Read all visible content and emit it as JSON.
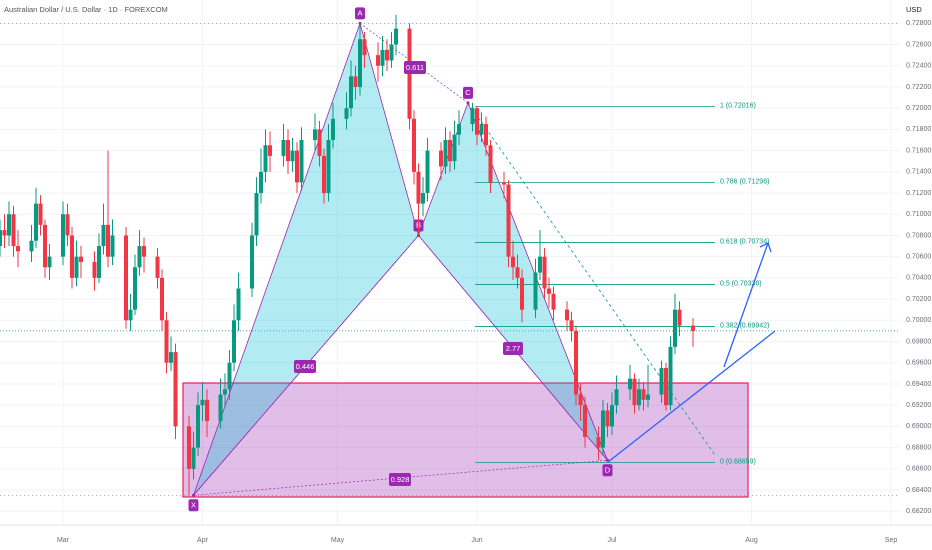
{
  "chart_data": {
    "type": "candlestick",
    "title": "Australian Dollar / U.S. Dollar · 1D · FOREXCOM",
    "y_label": "USD",
    "up_color": "#089981",
    "down_color": "#f23645",
    "grid": true,
    "xlim": [
      46,
      246
    ],
    "xticks": [
      {
        "value": 60,
        "label": "Mar"
      },
      {
        "value": 91,
        "label": "Apr"
      },
      {
        "value": 121,
        "label": "May"
      },
      {
        "value": 152,
        "label": "Jun"
      },
      {
        "value": 182,
        "label": "Jul"
      },
      {
        "value": 213,
        "label": "Aug"
      },
      {
        "value": 244,
        "label": "Sep"
      }
    ],
    "ylim": [
      0.6807,
      0.7302
    ],
    "yticks": [
      {
        "value": 0.682,
        "label": "0.68200"
      },
      {
        "value": 0.684,
        "label": "0.68400"
      },
      {
        "value": 0.686,
        "label": "0.68600"
      },
      {
        "value": 0.688,
        "label": "0.68800"
      },
      {
        "value": 0.69,
        "label": "0.69000"
      },
      {
        "value": 0.692,
        "label": "0.69200"
      },
      {
        "value": 0.694,
        "label": "0.69400"
      },
      {
        "value": 0.696,
        "label": "0.69600"
      },
      {
        "value": 0.698,
        "label": "0.69800"
      },
      {
        "value": 0.7,
        "label": "0.70000"
      },
      {
        "value": 0.702,
        "label": "0.70200"
      },
      {
        "value": 0.704,
        "label": "0.70400"
      },
      {
        "value": 0.706,
        "label": "0.70600"
      },
      {
        "value": 0.708,
        "label": "0.70800"
      },
      {
        "value": 0.71,
        "label": "0.71000"
      },
      {
        "value": 0.712,
        "label": "0.71200"
      },
      {
        "value": 0.714,
        "label": "0.71400"
      },
      {
        "value": 0.716,
        "label": "0.71600"
      },
      {
        "value": 0.718,
        "label": "0.71800"
      },
      {
        "value": 0.72,
        "label": "0.72000"
      },
      {
        "value": 0.722,
        "label": "0.72200"
      },
      {
        "value": 0.724,
        "label": "0.72400"
      },
      {
        "value": 0.726,
        "label": "0.72600"
      },
      {
        "value": 0.728,
        "label": "0.72800"
      }
    ],
    "x": [
      46,
      47,
      48,
      49,
      50,
      53,
      54,
      55,
      56,
      57,
      60,
      61,
      62,
      63,
      64,
      67,
      68,
      69,
      70,
      71,
      74,
      75,
      76,
      77,
      78,
      81,
      82,
      83,
      84,
      85,
      88,
      89,
      90,
      91,
      92,
      95,
      96,
      97,
      98,
      99,
      102,
      103,
      104,
      105,
      106,
      109,
      110,
      111,
      112,
      113,
      116,
      117,
      118,
      119,
      120,
      123,
      124,
      125,
      126,
      127,
      130,
      131,
      132,
      133,
      134,
      137,
      138,
      139,
      140,
      141,
      144,
      145,
      146,
      147,
      148,
      151,
      152,
      153,
      154,
      155,
      158,
      159,
      160,
      161,
      162,
      165,
      166,
      167,
      168,
      169,
      172,
      173,
      174,
      175,
      176,
      179,
      180,
      181,
      182,
      183,
      186,
      187,
      188,
      189,
      190,
      193,
      194,
      195,
      196,
      197,
      200
    ],
    "open": [
      0.707,
      0.7085,
      0.708,
      0.71,
      0.707,
      0.7065,
      0.7075,
      0.711,
      0.709,
      0.705,
      0.706,
      0.71,
      0.708,
      0.704,
      0.706,
      0.7055,
      0.704,
      0.707,
      0.709,
      0.706,
      0.708,
      0.7,
      0.701,
      0.705,
      0.707,
      0.706,
      0.704,
      0.7,
      0.696,
      0.697,
      0.69,
      0.686,
      0.688,
      0.692,
      0.6925,
      0.6905,
      0.693,
      0.6935,
      0.696,
      0.7,
      0.703,
      0.708,
      0.712,
      0.714,
      0.7165,
      0.7155,
      0.717,
      0.715,
      0.716,
      0.713,
      0.717,
      0.718,
      0.7155,
      0.712,
      0.717,
      0.719,
      0.72,
      0.723,
      0.722,
      0.7265,
      0.725,
      0.724,
      0.7255,
      0.7245,
      0.726,
      0.7275,
      0.719,
      0.714,
      0.711,
      0.712,
      0.716,
      0.7145,
      0.717,
      0.715,
      0.7175,
      0.7185,
      0.72,
      0.7175,
      0.7185,
      0.7165,
      0.713,
      0.7128,
      0.706,
      0.705,
      0.704,
      0.701,
      0.7045,
      0.706,
      0.703,
      0.7025,
      0.701,
      0.7,
      0.699,
      0.693,
      0.692,
      0.689,
      0.688,
      0.6915,
      0.69,
      0.692,
      0.6935,
      0.6945,
      0.692,
      0.6935,
      0.6925,
      0.693,
      0.6955,
      0.692,
      0.6975,
      0.701,
      0.6995
    ],
    "high": [
      0.7095,
      0.71,
      0.7112,
      0.7108,
      0.7085,
      0.709,
      0.7125,
      0.7118,
      0.7095,
      0.7072,
      0.7112,
      0.711,
      0.7088,
      0.7075,
      0.707,
      0.7065,
      0.7082,
      0.711,
      0.716,
      0.7095,
      0.7088,
      0.7025,
      0.7062,
      0.7085,
      0.7078,
      0.7068,
      0.7048,
      0.7008,
      0.6985,
      0.6978,
      0.691,
      0.6895,
      0.6932,
      0.6942,
      0.6935,
      0.6945,
      0.695,
      0.6972,
      0.7015,
      0.7045,
      0.7092,
      0.7135,
      0.7162,
      0.718,
      0.7178,
      0.7185,
      0.718,
      0.7172,
      0.7168,
      0.7182,
      0.7195,
      0.7188,
      0.7162,
      0.7185,
      0.7205,
      0.7215,
      0.7245,
      0.724,
      0.728,
      0.7272,
      0.7262,
      0.7268,
      0.7265,
      0.7272,
      0.7288,
      0.728,
      0.7198,
      0.7148,
      0.7135,
      0.7172,
      0.7168,
      0.7182,
      0.7178,
      0.7188,
      0.7198,
      0.7205,
      0.7202,
      0.7196,
      0.7192,
      0.717,
      0.714,
      0.7132,
      0.7075,
      0.7062,
      0.7048,
      0.7058,
      0.7085,
      0.7068,
      0.704,
      0.7032,
      0.7018,
      0.7008,
      0.6995,
      0.694,
      0.6928,
      0.69,
      0.6925,
      0.6922,
      0.6932,
      0.6948,
      0.6958,
      0.695,
      0.6945,
      0.6942,
      0.6958,
      0.6962,
      0.696,
      0.6985,
      0.7025,
      0.7018,
      0.7002
    ],
    "low": [
      0.706,
      0.7068,
      0.707,
      0.706,
      0.705,
      0.7055,
      0.7068,
      0.708,
      0.704,
      0.7038,
      0.7052,
      0.707,
      0.703,
      0.7032,
      0.704,
      0.7028,
      0.7035,
      0.7062,
      0.705,
      0.7052,
      0.6992,
      0.699,
      0.7005,
      0.7042,
      0.7045,
      0.703,
      0.699,
      0.695,
      0.6952,
      0.6888,
      0.6835,
      0.685,
      0.6872,
      0.6905,
      0.689,
      0.6898,
      0.6918,
      0.6925,
      0.6952,
      0.699,
      0.7022,
      0.707,
      0.711,
      0.713,
      0.714,
      0.7145,
      0.7138,
      0.714,
      0.712,
      0.7122,
      0.716,
      0.7145,
      0.711,
      0.7112,
      0.7162,
      0.718,
      0.7192,
      0.7208,
      0.7212,
      0.7238,
      0.7225,
      0.723,
      0.7235,
      0.7238,
      0.725,
      0.718,
      0.7128,
      0.708,
      0.7098,
      0.7112,
      0.7132,
      0.7138,
      0.714,
      0.7142,
      0.7165,
      0.7178,
      0.7165,
      0.7168,
      0.7155,
      0.712,
      0.7115,
      0.705,
      0.7038,
      0.703,
      0.6998,
      0.7002,
      0.7038,
      0.702,
      0.7012,
      0.7,
      0.699,
      0.698,
      0.692,
      0.6905,
      0.688,
      0.6868,
      0.6872,
      0.689,
      0.6892,
      0.6912,
      0.6925,
      0.6912,
      0.6915,
      0.6915,
      0.6918,
      0.6922,
      0.6915,
      0.6915,
      0.6968,
      0.6985,
      0.6975
    ],
    "close": [
      0.7085,
      0.708,
      0.71,
      0.707,
      0.7065,
      0.7075,
      0.711,
      0.709,
      0.705,
      0.706,
      0.71,
      0.708,
      0.704,
      0.706,
      0.7055,
      0.704,
      0.707,
      0.709,
      0.706,
      0.708,
      0.7,
      0.701,
      0.705,
      0.707,
      0.706,
      0.704,
      0.7,
      0.696,
      0.697,
      0.69,
      0.686,
      0.688,
      0.692,
      0.6925,
      0.6905,
      0.693,
      0.6935,
      0.696,
      0.7,
      0.703,
      0.708,
      0.712,
      0.714,
      0.7165,
      0.7155,
      0.717,
      0.715,
      0.716,
      0.713,
      0.717,
      0.718,
      0.7155,
      0.712,
      0.717,
      0.719,
      0.72,
      0.723,
      0.722,
      0.7265,
      0.725,
      0.724,
      0.7255,
      0.7245,
      0.726,
      0.7275,
      0.719,
      0.714,
      0.711,
      0.712,
      0.716,
      0.7145,
      0.717,
      0.715,
      0.7175,
      0.7185,
      0.72,
      0.7175,
      0.7185,
      0.7165,
      0.713,
      0.7128,
      0.706,
      0.705,
      0.704,
      0.701,
      0.7045,
      0.706,
      0.703,
      0.7025,
      0.701,
      0.7,
      0.699,
      0.693,
      0.692,
      0.689,
      0.688,
      0.6915,
      0.69,
      0.692,
      0.6935,
      0.6945,
      0.692,
      0.6935,
      0.6925,
      0.693,
      0.6955,
      0.692,
      0.6975,
      0.701,
      0.6995,
      0.699
    ],
    "pattern": [
      {
        "label": "X",
        "x": 89,
        "y": 0.6835
      },
      {
        "label": "A",
        "x": 126,
        "y": 0.728
      },
      {
        "label": "B",
        "x": 139,
        "y": 0.708
      },
      {
        "label": "C",
        "x": 150,
        "y": 0.7205
      },
      {
        "label": "D",
        "x": 181,
        "y": 0.6868
      }
    ],
    "ratios": [
      "0.446",
      "0.611",
      "2.77",
      "0.928"
    ],
    "fib_levels": [
      {
        "value": 0.72016,
        "label": "1 (0.72016)"
      },
      {
        "value": 0.71298,
        "label": "0.786 (0.71298)"
      },
      {
        "value": 0.70734,
        "label": "0.618 (0.70734)"
      },
      {
        "value": 0.70338,
        "label": "0.5 (0.70338)"
      },
      {
        "value": 0.69942,
        "label": "0.382 (0.69942)"
      },
      {
        "value": 0.68659,
        "label": "0 (0.68659)"
      }
    ]
  }
}
